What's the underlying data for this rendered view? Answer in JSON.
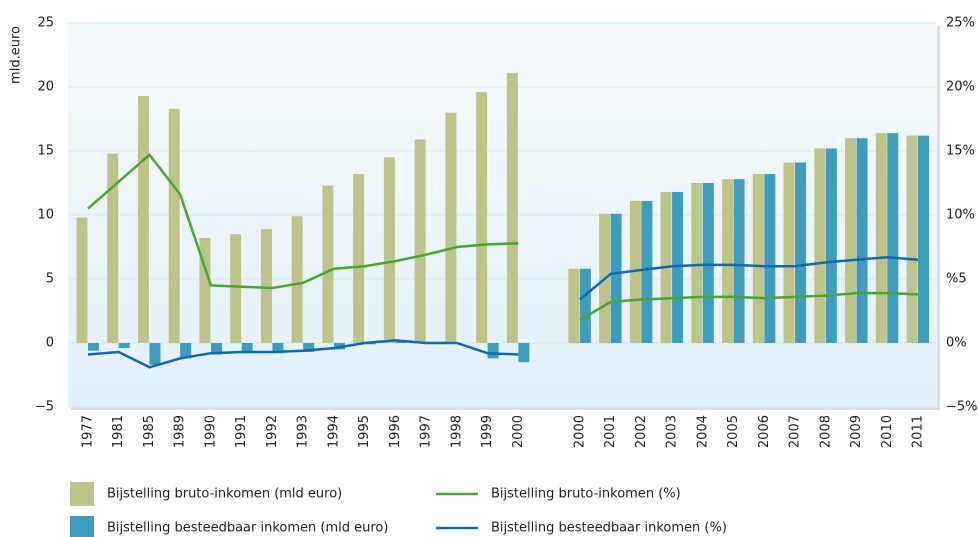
{
  "chart_data": {
    "type": "bar",
    "y_label": "mld.euro",
    "categories": [
      "1977",
      "1981",
      "1985",
      "1989",
      "1990",
      "1991",
      "1992",
      "1993",
      "1994",
      "1995",
      "1996",
      "1997",
      "1998",
      "1999",
      "2000",
      null,
      "2000",
      "2001",
      "2002",
      "2003",
      "2004",
      "2005",
      "2006",
      "2007",
      "2008",
      "2009",
      "2010",
      "2011"
    ],
    "series": [
      {
        "name": "Bijstelling bruto-inkomen (mld euro)",
        "type": "bar",
        "color": "#bec38b",
        "values": [
          9.8,
          14.8,
          19.3,
          18.3,
          8.2,
          8.5,
          8.9,
          9.9,
          12.3,
          13.2,
          14.5,
          15.9,
          18.0,
          19.6,
          21.1,
          null,
          5.8,
          10.1,
          11.1,
          11.8,
          12.5,
          12.8,
          13.2,
          14.1,
          15.2,
          16.0,
          16.4,
          16.2
        ]
      },
      {
        "name": "Bijstelling besteedbaar inkomen (mld euro)",
        "type": "bar",
        "color": "#3f9cbd",
        "values": [
          -0.6,
          -0.4,
          -1.7,
          -1.2,
          -0.9,
          -0.8,
          -0.8,
          -0.7,
          -0.5,
          -0.1,
          0.1,
          0,
          0,
          -1.2,
          -1.5,
          null,
          5.8,
          10.1,
          11.1,
          11.8,
          12.5,
          12.8,
          13.2,
          14.1,
          15.2,
          16.0,
          16.4,
          16.2
        ]
      },
      {
        "name": "Bijstelling bruto-inkomen (%)",
        "type": "line",
        "axis": "y2",
        "color": "#4aa531",
        "values": [
          10.5,
          12.6,
          14.7,
          11.6,
          4.5,
          4.4,
          4.3,
          4.7,
          5.8,
          6.0,
          6.4,
          6.9,
          7.5,
          7.7,
          7.8,
          null,
          1.8,
          3.2,
          3.4,
          3.5,
          3.6,
          3.6,
          3.5,
          3.6,
          3.7,
          3.9,
          3.9,
          3.8
        ]
      },
      {
        "name": "Bijstelling besteedbaar inkomen (%)",
        "type": "line",
        "axis": "y2",
        "color": "#1568ad",
        "values": [
          -0.9,
          -0.7,
          -1.9,
          -1.2,
          -0.8,
          -0.7,
          -0.7,
          -0.6,
          -0.4,
          0,
          0.2,
          0,
          0,
          -0.8,
          -0.9,
          null,
          3.4,
          5.4,
          5.7,
          6.0,
          6.1,
          6.1,
          6.0,
          6.0,
          6.3,
          6.5,
          6.7,
          6.5
        ]
      }
    ],
    "ylim": [
      -5,
      25
    ],
    "yticks": [
      {
        "value": -5,
        "label": "−5"
      },
      0,
      5,
      10,
      15,
      20,
      25
    ],
    "y2lim": [
      -5,
      25
    ],
    "y2ticks": [
      {
        "value": -5,
        "label": "−5%"
      },
      {
        "value": 0,
        "label": "0%"
      },
      {
        "value": 5,
        "label": "%5"
      },
      {
        "value": 10,
        "label": "10%"
      },
      {
        "value": 15,
        "label": "15%"
      },
      {
        "value": 20,
        "label": "20%"
      },
      {
        "value": 25,
        "label": "25%"
      }
    ],
    "grid": true
  }
}
